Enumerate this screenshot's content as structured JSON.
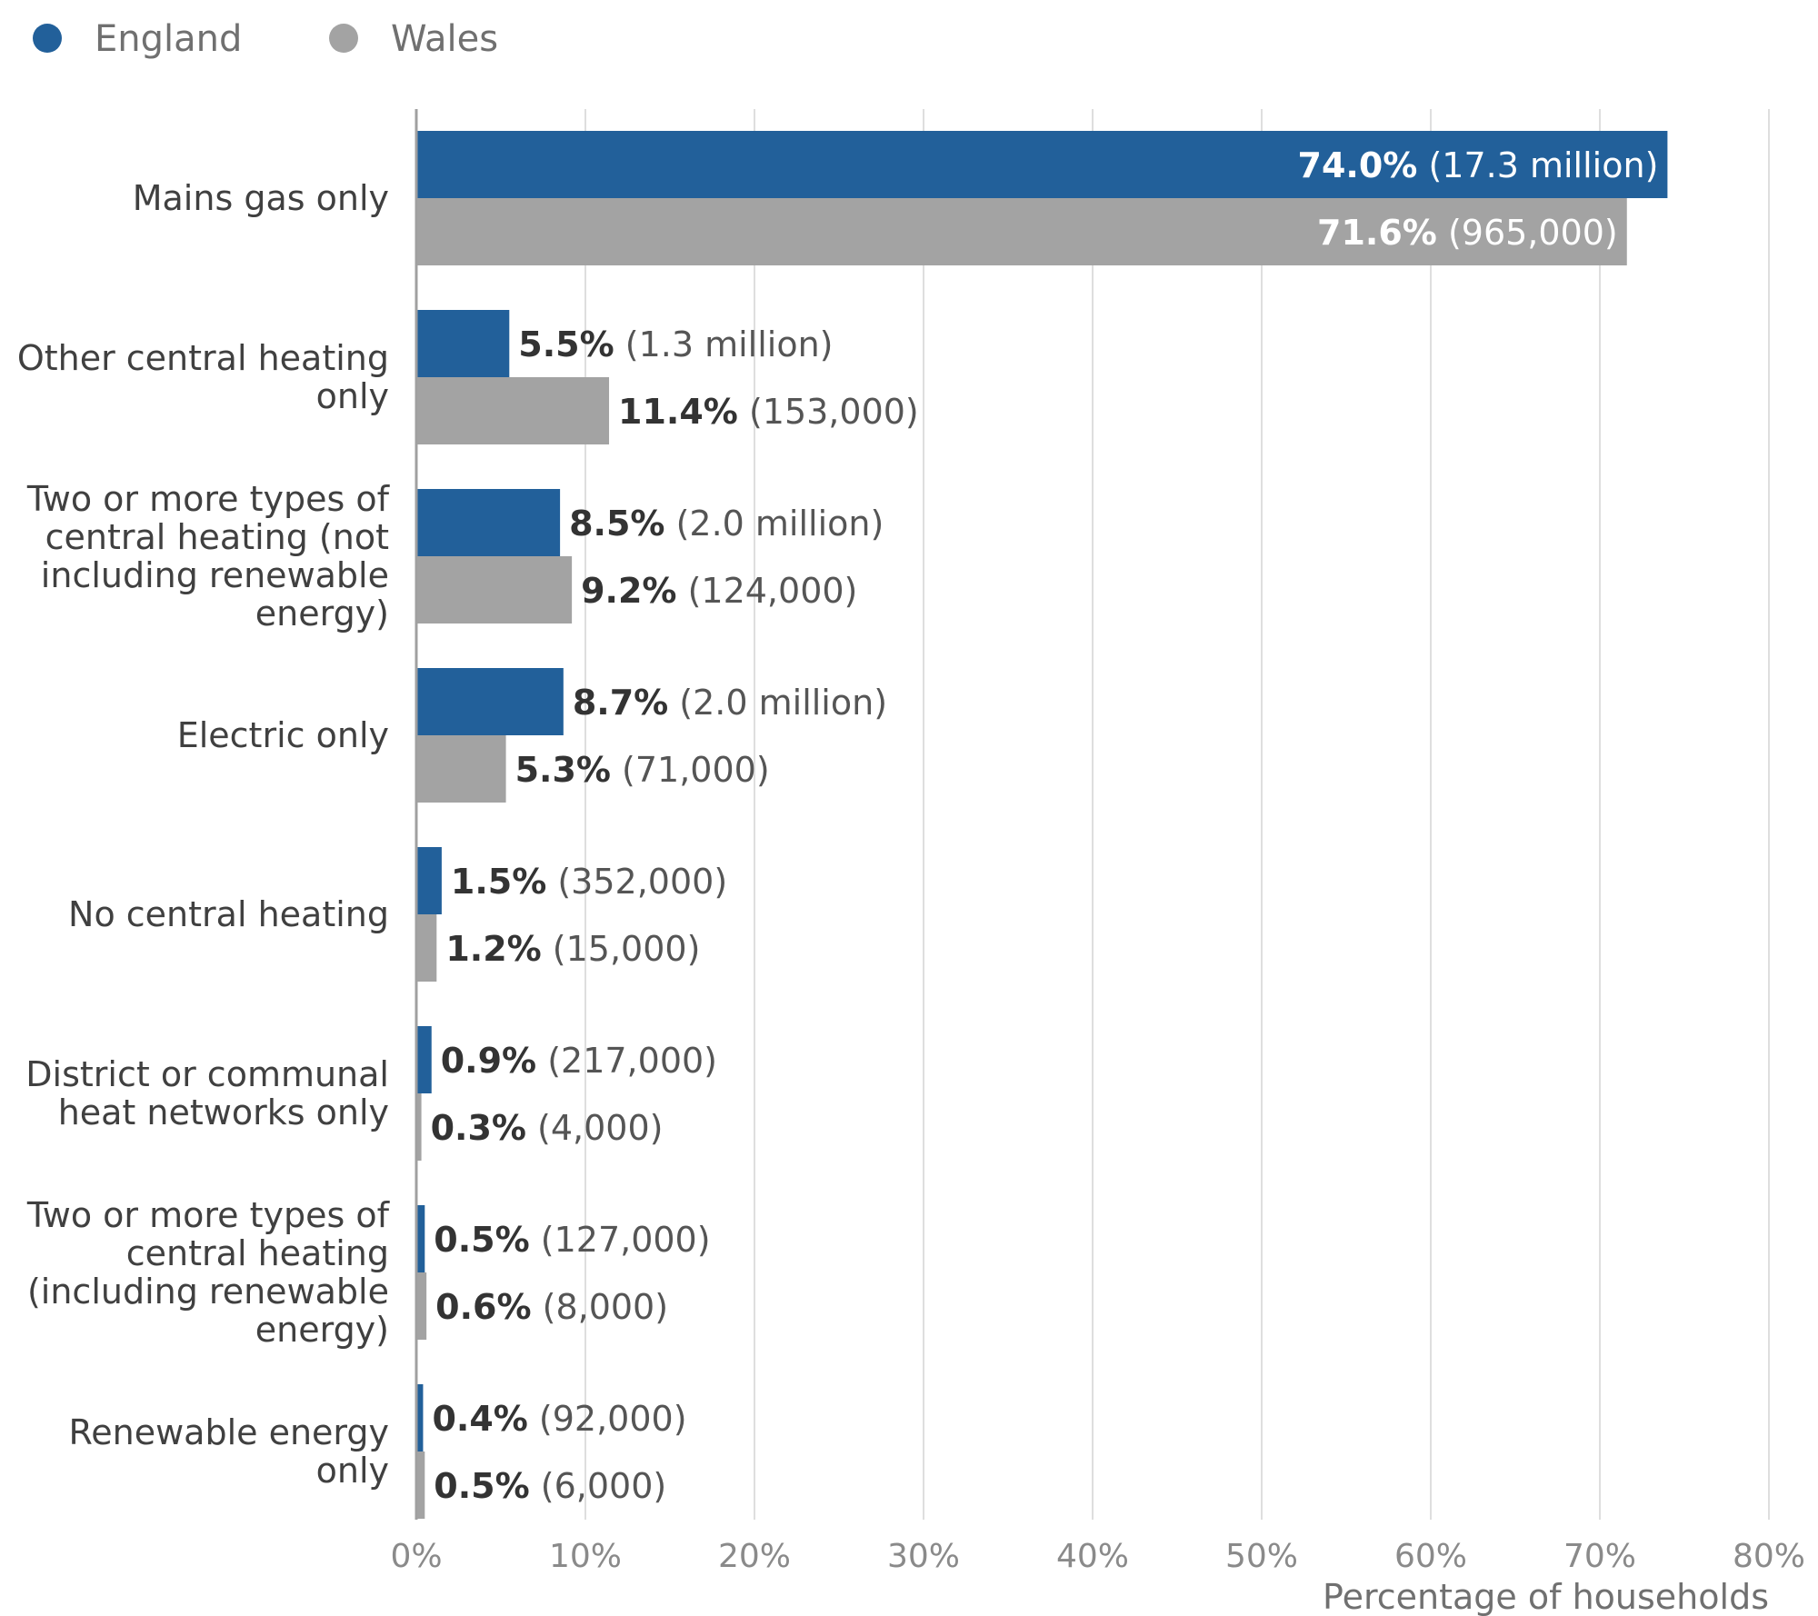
{
  "chart_data": {
    "type": "bar",
    "orientation": "horizontal",
    "categories": [
      [
        "Mains gas only"
      ],
      [
        "Other central heating",
        "only"
      ],
      [
        "Two or more types of",
        "central heating (not",
        "including renewable",
        "energy)"
      ],
      [
        "Electric only"
      ],
      [
        "No central heating"
      ],
      [
        "District or communal",
        "heat networks only"
      ],
      [
        "Two or more types of",
        "central heating",
        "(including renewable",
        "energy)"
      ],
      [
        "Renewable energy",
        "only"
      ]
    ],
    "series": [
      {
        "name": "England",
        "color": "#22609a",
        "values": [
          74.0,
          5.5,
          8.5,
          8.7,
          1.5,
          0.9,
          0.5,
          0.4
        ],
        "pct_labels": [
          "74.0%",
          "5.5%",
          "8.5%",
          "8.7%",
          "1.5%",
          "0.9%",
          "0.5%",
          "0.4%"
        ],
        "count_labels": [
          "(17.3 million)",
          "(1.3 million)",
          "(2.0 million)",
          "(2.0 million)",
          "(352,000)",
          "(217,000)",
          "(127,000)",
          "(92,000)"
        ]
      },
      {
        "name": "Wales",
        "color": "#a3a3a3",
        "values": [
          71.6,
          11.4,
          9.2,
          5.3,
          1.2,
          0.3,
          0.6,
          0.5
        ],
        "pct_labels": [
          "71.6%",
          "11.4%",
          "9.2%",
          "5.3%",
          "1.2%",
          "0.3%",
          "0.6%",
          "0.5%"
        ],
        "count_labels": [
          "(965,000)",
          "(153,000)",
          "(124,000)",
          "(71,000)",
          "(15,000)",
          "(4,000)",
          "(8,000)",
          "(6,000)"
        ]
      }
    ],
    "xlim": [
      0,
      80
    ],
    "xticks": [
      0,
      10,
      20,
      30,
      40,
      50,
      60,
      70,
      80
    ],
    "xtick_labels": [
      "0%",
      "10%",
      "20%",
      "30%",
      "40%",
      "50%",
      "60%",
      "70%",
      "80%"
    ],
    "xlabel": "Percentage of households",
    "ylabel": "",
    "title": "",
    "grid": true,
    "legend": "top-left",
    "inside_label_threshold": 60
  }
}
